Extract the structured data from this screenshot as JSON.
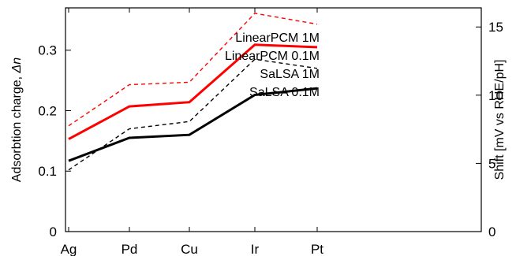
{
  "chart_data": {
    "type": "line",
    "categories": [
      "Ag",
      "Pd",
      "Cu",
      "Ir",
      "Pt"
    ],
    "ylabel": "Adsorbtion charge, Δn",
    "ylabel_prefix": "Adsorbtion charge, ",
    "ylabel_symbol": "Δn",
    "y2label": "Shift [mV vs RHE/pH]",
    "ylim": [
      0,
      0.37
    ],
    "y2lim": [
      0,
      16.4
    ],
    "yticks": [
      "0",
      "0.1",
      "0.2",
      "0.3"
    ],
    "y2ticks": [
      "0",
      "5",
      "10",
      "15"
    ],
    "legend_position": "top-right",
    "grid": false,
    "series": [
      {
        "name": "LinearPCM 1M",
        "values": [
          0.175,
          0.243,
          0.247,
          0.361,
          0.343
        ],
        "color": "#ff0000",
        "style": "dashed"
      },
      {
        "name": "LinearPCM 0.1M",
        "values": [
          0.153,
          0.207,
          0.214,
          0.309,
          0.305
        ],
        "color": "#ff0000",
        "style": "solid"
      },
      {
        "name": "SaLSA 1M",
        "values": [
          0.102,
          0.17,
          0.182,
          0.285,
          0.27
        ],
        "color": "#000000",
        "style": "dashed"
      },
      {
        "name": "SaLSA 0.1M",
        "values": [
          0.117,
          0.155,
          0.16,
          0.226,
          0.237
        ],
        "color": "#000000",
        "style": "solid"
      }
    ]
  }
}
